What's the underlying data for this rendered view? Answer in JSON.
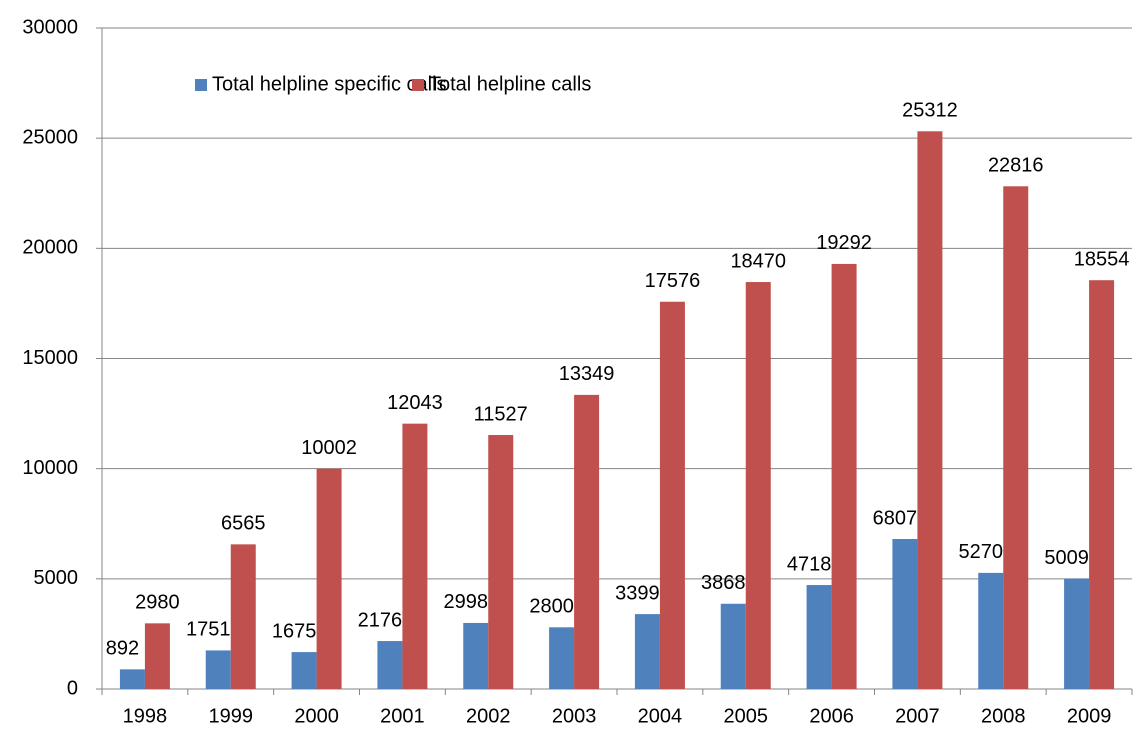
{
  "chart_data": {
    "type": "bar",
    "categories": [
      "1998",
      "1999",
      "2000",
      "2001",
      "2002",
      "2003",
      "2004",
      "2005",
      "2006",
      "2007",
      "2008",
      "2009"
    ],
    "series": [
      {
        "name": "Total helpline specific calls",
        "color": "#4f81bd",
        "values": [
          892,
          1751,
          1675,
          2176,
          2998,
          2800,
          3399,
          3868,
          4718,
          6807,
          5270,
          5009
        ]
      },
      {
        "name": "Total helpline calls",
        "color": "#c0504d",
        "values": [
          2980,
          6565,
          10002,
          12043,
          11527,
          13349,
          17576,
          18470,
          19292,
          25312,
          22816,
          18554
        ]
      }
    ],
    "ylim": [
      0,
      30000
    ],
    "yticks": [
      0,
      5000,
      10000,
      15000,
      20000,
      25000,
      30000
    ],
    "grid": true,
    "legend": "top-left"
  }
}
